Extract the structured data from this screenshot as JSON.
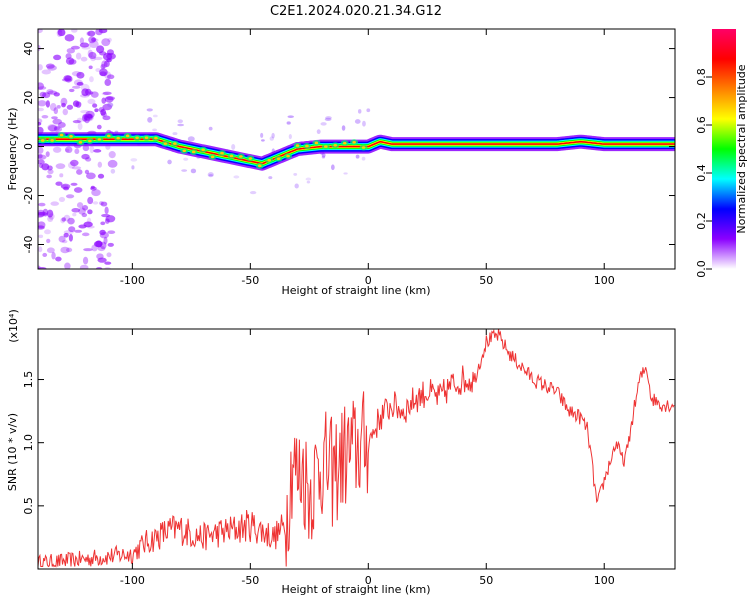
{
  "figure": {
    "title": "C2E1.2024.020.21.34.G12"
  },
  "chart_data": [
    {
      "type": "heatmap",
      "xlabel": "Height of straight line (km)",
      "ylabel": "Frequency (Hz)",
      "xlim": [
        -140,
        130
      ],
      "ylim": [
        -50,
        48
      ],
      "xticks": [
        -100,
        -50,
        0,
        50,
        100
      ],
      "xtick_labels": [
        "-100",
        "-50",
        "0",
        "50",
        "100"
      ],
      "yticks": [
        40,
        20,
        0,
        -20,
        -40
      ],
      "ytick_labels": [
        "40",
        "20",
        "0",
        "-20",
        "-40"
      ],
      "ridge": {
        "x": [
          -140,
          -120,
          -110,
          -100,
          -90,
          -80,
          -70,
          -60,
          -50,
          -45,
          -40,
          -35,
          -30,
          -20,
          -10,
          0,
          5,
          10,
          20,
          40,
          60,
          80,
          90,
          100,
          110,
          120,
          130
        ],
        "y": [
          3,
          3,
          3,
          3,
          3,
          0,
          -2,
          -4,
          -6,
          -7,
          -5,
          -3,
          -1,
          0,
          0,
          0,
          2,
          1,
          1,
          1,
          1,
          1,
          2,
          1,
          1,
          1,
          1
        ]
      },
      "colorbar": {
        "label": "Normalized spectral amplitude",
        "range": [
          0.0,
          1.0
        ],
        "ticks": [
          0.0,
          0.2,
          0.4,
          0.6,
          0.8
        ],
        "tick_labels": [
          "0.0",
          "0.2",
          "0.4",
          "0.6",
          "0.8"
        ],
        "colormap": [
          "#ffffff",
          "#8b00ff",
          "#0000ff",
          "#00ffff",
          "#00ff00",
          "#ffff00",
          "#ff8000",
          "#ff0000",
          "#ff0066"
        ]
      }
    },
    {
      "type": "line",
      "xlabel": "Height of straight line (km)",
      "ylabel": "SNR (10 * v/v)",
      "multiplier": "(x10⁴)",
      "xlim": [
        -140,
        130
      ],
      "ylim": [
        0,
        1.9
      ],
      "xticks": [
        -100,
        -50,
        0,
        50,
        100
      ],
      "xtick_labels": [
        "-100",
        "-50",
        "0",
        "50",
        "100"
      ],
      "yticks": [
        1.5,
        1.0,
        0.5
      ],
      "ytick_labels": [
        "1.5",
        "1.0",
        "0.5"
      ],
      "color": "#ee3333",
      "series": [
        {
          "x": [
            -140,
            -130,
            -120,
            -110,
            -100,
            -95,
            -90,
            -85,
            -80,
            -75,
            -70,
            -65,
            -60,
            -55,
            -50,
            -45,
            -40,
            -35,
            -32,
            -30,
            -28,
            -25,
            -20,
            -15,
            -10,
            -5,
            0,
            5,
            10,
            15,
            20,
            25,
            30,
            35,
            40,
            45,
            50,
            55,
            60,
            65,
            70,
            75,
            80,
            85,
            90,
            93,
            95,
            97,
            100,
            105,
            108,
            110,
            112,
            115,
            118,
            120,
            125,
            130
          ],
          "y": [
            0.05,
            0.06,
            0.08,
            0.1,
            0.12,
            0.2,
            0.25,
            0.3,
            0.32,
            0.28,
            0.25,
            0.28,
            0.3,
            0.32,
            0.35,
            0.3,
            0.25,
            0.35,
            0.9,
            0.7,
            0.8,
            0.6,
            0.85,
            0.75,
            0.9,
            0.95,
            1.0,
            1.2,
            1.3,
            1.25,
            1.35,
            1.4,
            1.35,
            1.45,
            1.5,
            1.5,
            1.8,
            1.85,
            1.7,
            1.6,
            1.5,
            1.45,
            1.4,
            1.25,
            1.2,
            1.1,
            0.8,
            0.5,
            0.7,
            1.0,
            0.85,
            0.95,
            1.2,
            1.5,
            1.6,
            1.35,
            1.3,
            1.3
          ]
        }
      ]
    }
  ]
}
